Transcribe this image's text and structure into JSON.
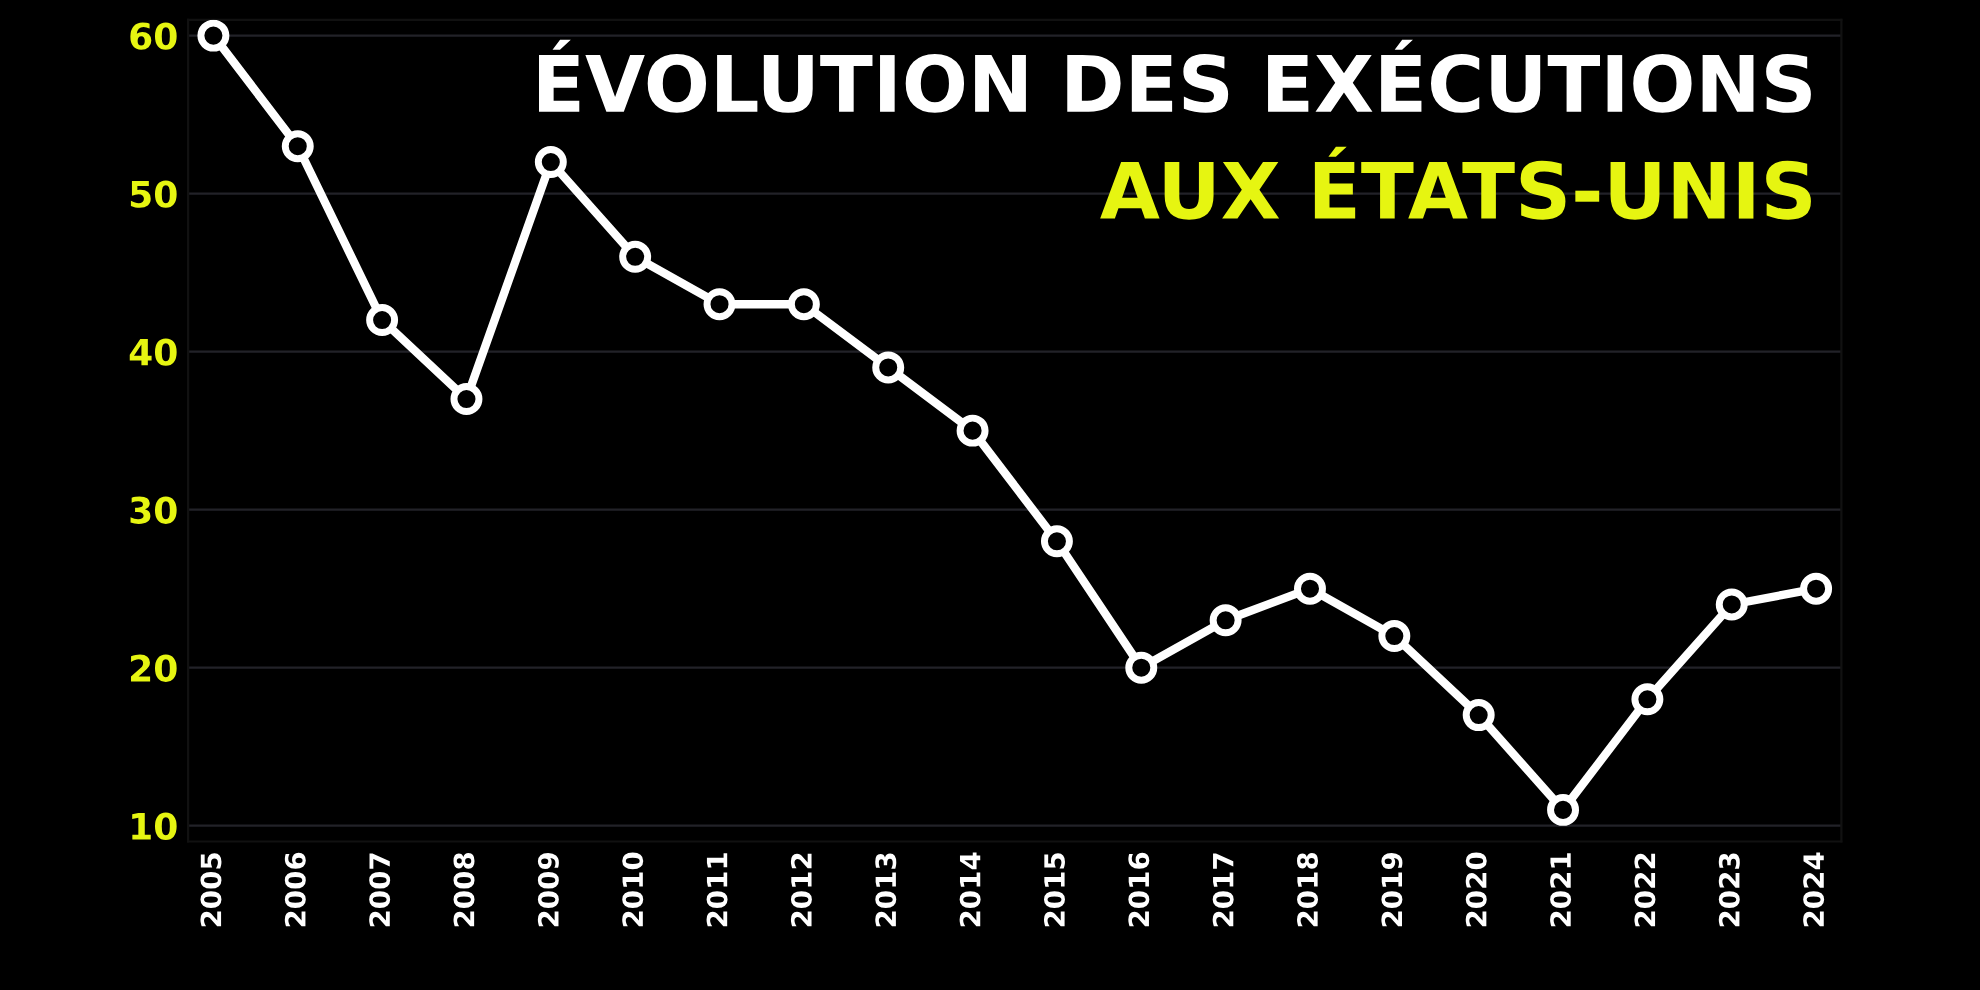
{
  "chart_data": {
    "type": "line",
    "title": "ÉVOLUTION DES EXÉCUTIONS",
    "subtitle": "AUX ÉTATS-UNIS",
    "categories": [
      "2005",
      "2006",
      "2007",
      "2008",
      "2009",
      "2010",
      "2011",
      "2012",
      "2013",
      "2014",
      "2015",
      "2016",
      "2017",
      "2018",
      "2019",
      "2020",
      "2021",
      "2022",
      "2023",
      "2024"
    ],
    "series": [
      {
        "color": "#ffffff",
        "values": [
          60,
          53,
          42,
          37,
          52,
          46,
          43,
          43,
          39,
          35,
          28,
          20,
          23,
          25,
          22,
          17,
          11,
          18,
          24,
          25
        ]
      }
    ],
    "ylim": [
      9,
      61
    ],
    "yticks": [
      10,
      20,
      30,
      40,
      50,
      60
    ],
    "grid": "y",
    "marker": "circle",
    "line_style": "solid"
  }
}
